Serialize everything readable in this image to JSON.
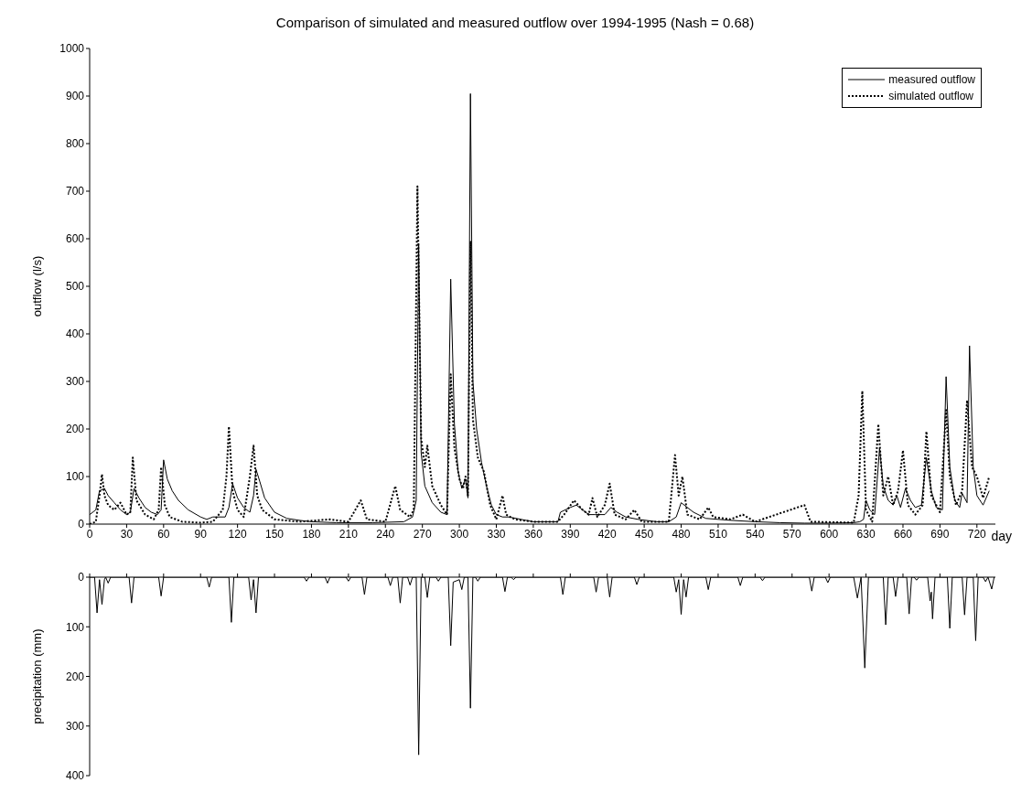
{
  "chart_data": [
    {
      "type": "line",
      "title": "Comparison of simulated and measured outflow over 1994-1995 (Nash = 0.68)",
      "xlabel": "day",
      "ylabel": "outflow (l/s)",
      "xlim": [
        0,
        735
      ],
      "xticks": [
        0,
        30,
        60,
        90,
        120,
        150,
        180,
        210,
        240,
        270,
        300,
        330,
        360,
        390,
        420,
        450,
        480,
        510,
        540,
        570,
        600,
        630,
        660,
        690,
        720
      ],
      "ylim": [
        0,
        1000
      ],
      "yticks": [
        0,
        100,
        200,
        300,
        400,
        500,
        600,
        700,
        800,
        900,
        1000
      ],
      "legend": "top right",
      "marker": "none",
      "series": [
        {
          "name": "measured outflow",
          "color": "#000000",
          "line_style": "solid",
          "x": [
            0,
            5,
            8,
            12,
            15,
            20,
            25,
            30,
            33,
            36,
            40,
            45,
            50,
            55,
            58,
            60,
            63,
            67,
            72,
            80,
            90,
            95,
            100,
            110,
            113,
            116,
            120,
            125,
            130,
            133,
            135,
            138,
            142,
            150,
            160,
            170,
            180,
            200,
            230,
            255,
            262,
            265,
            267,
            269,
            272,
            278,
            285,
            290,
            293,
            296,
            299,
            302,
            305,
            307,
            309,
            311,
            314,
            318,
            322,
            326,
            330,
            335,
            340,
            350,
            360,
            380,
            382,
            390,
            395,
            400,
            405,
            410,
            418,
            423,
            428,
            435,
            445,
            460,
            470,
            476,
            480,
            485,
            490,
            500,
            510,
            520,
            540,
            560,
            580,
            600,
            620,
            625,
            628,
            630,
            633,
            637,
            641,
            644,
            648,
            652,
            655,
            658,
            662,
            666,
            670,
            675,
            679,
            683,
            687,
            692,
            695,
            698,
            702,
            706,
            708,
            712,
            714,
            717,
            720,
            725,
            730
          ],
          "values": [
            20,
            30,
            70,
            75,
            60,
            45,
            30,
            20,
            25,
            75,
            55,
            35,
            25,
            20,
            30,
            135,
            95,
            70,
            50,
            30,
            15,
            10,
            15,
            15,
            35,
            85,
            55,
            35,
            25,
            60,
            115,
            90,
            55,
            25,
            12,
            8,
            5,
            3,
            3,
            5,
            15,
            50,
            590,
            150,
            80,
            45,
            25,
            20,
            515,
            210,
            110,
            75,
            95,
            55,
            905,
            300,
            200,
            130,
            80,
            40,
            20,
            15,
            15,
            10,
            5,
            5,
            25,
            35,
            40,
            30,
            20,
            20,
            20,
            35,
            25,
            15,
            10,
            5,
            5,
            15,
            45,
            35,
            25,
            12,
            10,
            8,
            5,
            3,
            2,
            2,
            3,
            5,
            10,
            50,
            30,
            20,
            160,
            80,
            50,
            40,
            60,
            35,
            75,
            50,
            35,
            40,
            140,
            70,
            35,
            30,
            310,
            120,
            50,
            35,
            65,
            45,
            375,
            120,
            60,
            40,
            70
          ]
        },
        {
          "name": "simulated outflow",
          "color": "#000000",
          "line_style": "dotted",
          "x": [
            0,
            5,
            8,
            10,
            12,
            15,
            20,
            25,
            30,
            33,
            35,
            38,
            45,
            52,
            56,
            58,
            61,
            65,
            75,
            90,
            100,
            108,
            111,
            113,
            116,
            120,
            125,
            130,
            133,
            136,
            140,
            150,
            170,
            195,
            210,
            220,
            225,
            240,
            248,
            252,
            260,
            263,
            266,
            269,
            272,
            274,
            278,
            285,
            290,
            293,
            296,
            300,
            303,
            305,
            307,
            309,
            311,
            315,
            320,
            325,
            330,
            335,
            338,
            345,
            360,
            380,
            385,
            393,
            400,
            405,
            408,
            412,
            418,
            422,
            426,
            435,
            442,
            448,
            470,
            475,
            478,
            481,
            485,
            495,
            502,
            506,
            520,
            530,
            540,
            580,
            585,
            620,
            624,
            627,
            630,
            635,
            640,
            644,
            648,
            652,
            656,
            660,
            664,
            670,
            676,
            679,
            683,
            690,
            695,
            698,
            703,
            708,
            712,
            716,
            720,
            725,
            730
          ],
          "values": [
            0,
            5,
            60,
            105,
            60,
            40,
            30,
            45,
            20,
            25,
            140,
            50,
            20,
            10,
            30,
            120,
            40,
            15,
            5,
            3,
            5,
            30,
            100,
            205,
            70,
            30,
            15,
            100,
            165,
            60,
            30,
            10,
            5,
            10,
            5,
            50,
            10,
            5,
            80,
            30,
            15,
            30,
            710,
            180,
            120,
            165,
            80,
            40,
            20,
            315,
            160,
            95,
            75,
            100,
            60,
            595,
            220,
            140,
            110,
            40,
            10,
            60,
            20,
            10,
            5,
            5,
            20,
            50,
            30,
            20,
            55,
            15,
            40,
            85,
            20,
            10,
            30,
            5,
            5,
            145,
            60,
            100,
            20,
            10,
            35,
            15,
            10,
            20,
            5,
            40,
            5,
            3,
            60,
            280,
            30,
            5,
            210,
            60,
            100,
            40,
            70,
            155,
            40,
            20,
            40,
            195,
            60,
            25,
            240,
            100,
            40,
            70,
            260,
            120,
            100,
            55,
            100
          ]
        }
      ]
    },
    {
      "type": "line",
      "ylabel": "precipitation (mm)",
      "xlim": [
        0,
        735
      ],
      "xticks": [
        0,
        30,
        60,
        90,
        120,
        150,
        180,
        210,
        240,
        270,
        300,
        330,
        360,
        390,
        420,
        450,
        480,
        510,
        540,
        570,
        600,
        630,
        660,
        690,
        720
      ],
      "ylim": [
        400,
        0
      ],
      "yticks": [
        0,
        100,
        200,
        300,
        400
      ],
      "tick_labels": "y",
      "marker": "none",
      "series": [
        {
          "color": "#000000",
          "line_style": "solid",
          "x": [
            0,
            4,
            6,
            8,
            10,
            12,
            13,
            15,
            17,
            32,
            34,
            36,
            56,
            58,
            60,
            95,
            97,
            99,
            113,
            115,
            117,
            129,
            131,
            133,
            135,
            137,
            174,
            176,
            178,
            191,
            193,
            195,
            208,
            210,
            212,
            221,
            223,
            225,
            242,
            244,
            246,
            250,
            252,
            254,
            258,
            260,
            262,
            265,
            267,
            269,
            272,
            274,
            276,
            281,
            283,
            285,
            291,
            293,
            295,
            300,
            302,
            304,
            307,
            309,
            311,
            313,
            315,
            317,
            335,
            337,
            339,
            342,
            344,
            346,
            382,
            384,
            386,
            409,
            411,
            413,
            420,
            422,
            424,
            442,
            444,
            446,
            474,
            476,
            478,
            480,
            482,
            484,
            486,
            500,
            502,
            504,
            526,
            528,
            530,
            544,
            546,
            548,
            584,
            586,
            588,
            597,
            599,
            601,
            620,
            623,
            626,
            629,
            632,
            644,
            646,
            648,
            652,
            654,
            656,
            663,
            665,
            667,
            669,
            671,
            673,
            680,
            682,
            683,
            684,
            686,
            696,
            698,
            700,
            708,
            710,
            712,
            717,
            719,
            721,
            725,
            727,
            729,
            732,
            734
          ],
          "values": [
            0,
            0,
            72,
            5,
            55,
            5,
            0,
            12,
            0,
            0,
            52,
            0,
            0,
            38,
            0,
            0,
            20,
            0,
            0,
            91,
            0,
            0,
            46,
            5,
            72,
            0,
            0,
            8,
            0,
            0,
            12,
            0,
            0,
            8,
            0,
            0,
            35,
            0,
            0,
            17,
            0,
            0,
            52,
            0,
            0,
            16,
            0,
            0,
            358,
            0,
            0,
            41,
            0,
            0,
            8,
            0,
            0,
            138,
            10,
            5,
            25,
            0,
            0,
            264,
            0,
            0,
            8,
            0,
            0,
            29,
            0,
            0,
            5,
            0,
            0,
            35,
            0,
            0,
            30,
            0,
            0,
            40,
            0,
            0,
            15,
            0,
            0,
            30,
            5,
            75,
            5,
            40,
            0,
            0,
            25,
            0,
            0,
            17,
            0,
            0,
            7,
            0,
            0,
            28,
            0,
            0,
            11,
            0,
            0,
            42,
            0,
            183,
            0,
            0,
            96,
            0,
            0,
            39,
            0,
            0,
            74,
            0,
            0,
            6,
            0,
            0,
            48,
            30,
            84,
            0,
            0,
            103,
            0,
            0,
            76,
            0,
            0,
            128,
            0,
            0,
            9,
            0,
            24,
            0
          ]
        }
      ]
    }
  ]
}
